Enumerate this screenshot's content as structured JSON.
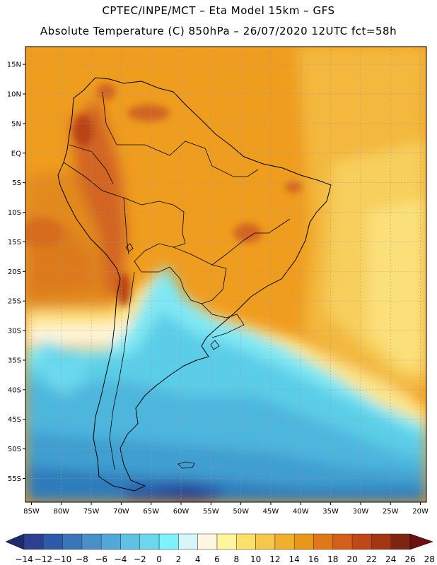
{
  "header": {
    "line1": "CPTEC/INPE/MCT –  Eta Model 15km – GFS",
    "line2": "Absolute Temperature (C) 850hPa – 26/07/2020 12UTC fct=58h"
  },
  "map": {
    "lon_range": [
      -86,
      -19
    ],
    "lat_range": [
      -59,
      18
    ],
    "lat_ticks": [
      {
        "value": 15,
        "label": "15N"
      },
      {
        "value": 10,
        "label": "10N"
      },
      {
        "value": 5,
        "label": "5N"
      },
      {
        "value": 0,
        "label": "EQ"
      },
      {
        "value": -5,
        "label": "5S"
      },
      {
        "value": -10,
        "label": "10S"
      },
      {
        "value": -15,
        "label": "15S"
      },
      {
        "value": -20,
        "label": "20S"
      },
      {
        "value": -25,
        "label": "25S"
      },
      {
        "value": -30,
        "label": "30S"
      },
      {
        "value": -35,
        "label": "35S"
      },
      {
        "value": -40,
        "label": "40S"
      },
      {
        "value": -45,
        "label": "45S"
      },
      {
        "value": -50,
        "label": "50S"
      },
      {
        "value": -55,
        "label": "55S"
      }
    ],
    "lon_ticks": [
      {
        "value": -85,
        "label": "85W"
      },
      {
        "value": -80,
        "label": "80W"
      },
      {
        "value": -75,
        "label": "75W"
      },
      {
        "value": -70,
        "label": "70W"
      },
      {
        "value": -65,
        "label": "65W"
      },
      {
        "value": -60,
        "label": "60W"
      },
      {
        "value": -55,
        "label": "55W"
      },
      {
        "value": -50,
        "label": "50W"
      },
      {
        "value": -45,
        "label": "45W"
      },
      {
        "value": -40,
        "label": "40W"
      },
      {
        "value": -35,
        "label": "35W"
      },
      {
        "value": -30,
        "label": "30W"
      },
      {
        "value": -25,
        "label": "25W"
      },
      {
        "value": -20,
        "label": "20W"
      }
    ]
  },
  "colorbar": {
    "colors": [
      "#2d3f8e",
      "#2f5aa8",
      "#3b76b9",
      "#4a90c8",
      "#52a8d8",
      "#5fc1e4",
      "#6ad8ee",
      "#7ef2fb",
      "#d7f6fa",
      "#fff7df",
      "#fff59b",
      "#fde06a",
      "#f5c84c",
      "#efb02e",
      "#e89818",
      "#e07718",
      "#d45f1b",
      "#c04818",
      "#a23612",
      "#7e2510"
    ],
    "left_arrow_color": "#1f2a6e",
    "right_arrow_color": "#6b0f12",
    "labels": [
      "−14",
      "−12",
      "−10",
      "−8",
      "−6",
      "−4",
      "−2",
      "0",
      "2",
      "4",
      "6",
      "8",
      "10",
      "12",
      "14",
      "16",
      "18",
      "20",
      "22",
      "24",
      "26",
      "28"
    ]
  }
}
